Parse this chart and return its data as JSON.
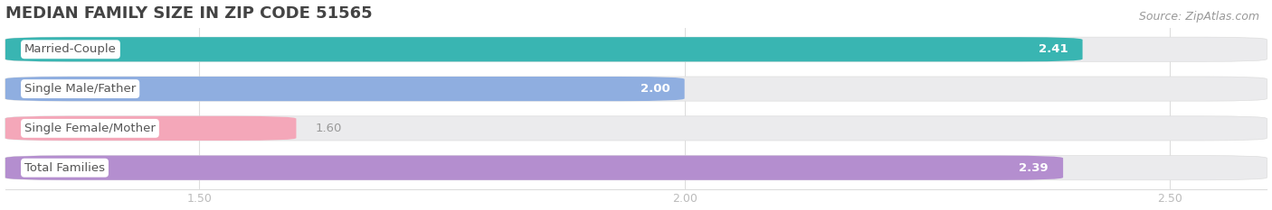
{
  "title": "MEDIAN FAMILY SIZE IN ZIP CODE 51565",
  "source": "Source: ZipAtlas.com",
  "categories": [
    "Married-Couple",
    "Single Male/Father",
    "Single Female/Mother",
    "Total Families"
  ],
  "values": [
    2.41,
    2.0,
    1.6,
    2.39
  ],
  "bar_colors": [
    "#39b5b2",
    "#8faee0",
    "#f4a7b9",
    "#b48ecf"
  ],
  "bar_bg_colors": [
    "#ebebed",
    "#ebebed",
    "#ebebed",
    "#ebebed"
  ],
  "value_labels": [
    "2.41",
    "2.00",
    "1.60",
    "2.39"
  ],
  "xlim_min": 1.3,
  "xlim_max": 2.6,
  "xticks": [
    1.5,
    2.0,
    2.5
  ],
  "xtick_labels": [
    "1.50",
    "2.00",
    "2.50"
  ],
  "bar_height": 0.62,
  "title_fontsize": 13,
  "label_fontsize": 9.5,
  "value_fontsize": 9.5,
  "source_fontsize": 9,
  "tick_fontsize": 9,
  "title_color": "#444444",
  "label_color": "#555555",
  "value_color_inside": "#ffffff",
  "value_color_outside": "#999999",
  "source_color": "#999999",
  "tick_color": "#bbbbbb",
  "grid_color": "#dddddd",
  "background_color": "#ffffff",
  "label_pill_color": "#ffffff",
  "label_pill_border": "#dddddd"
}
